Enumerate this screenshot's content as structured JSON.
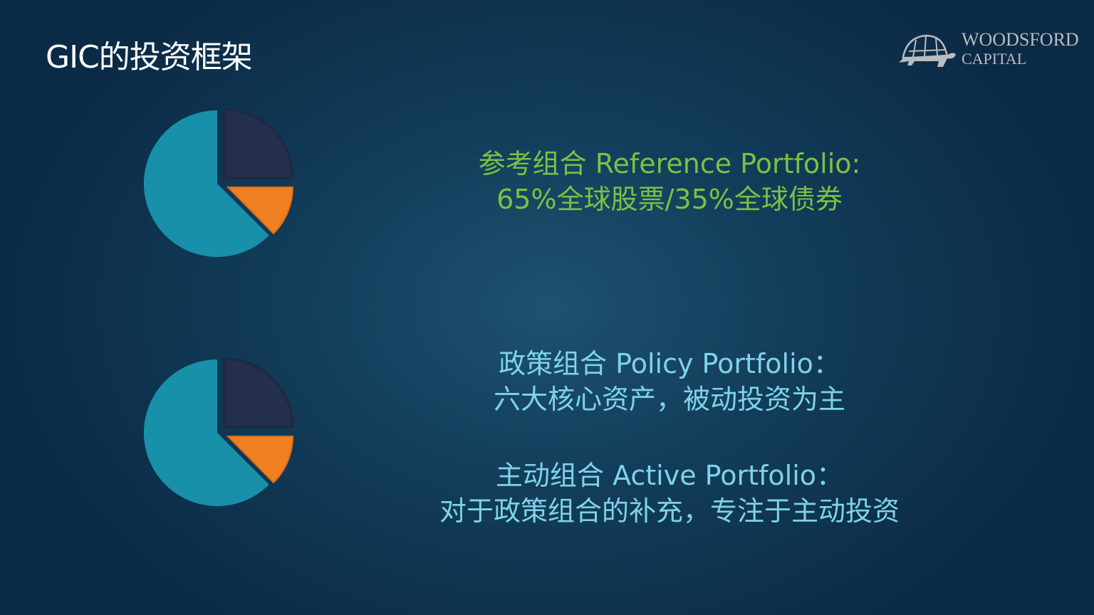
{
  "title": "GIC的投资框架",
  "logo": {
    "line1": "WOODSFORD",
    "line2": "CAPITAL"
  },
  "colors": {
    "pie_main": "#1890aa",
    "pie_dark": "#232f4c",
    "pie_orange": "#f07f22",
    "reference_text": "#7ac143",
    "policy_text": "#7fd3e6"
  },
  "reference": {
    "line1": "参考组合 Reference Portfolio:",
    "line2": "65%全球股票/35%全球债券"
  },
  "policy": {
    "line1": "政策组合 Policy Portfolio：",
    "line2": "六大核心资产，被动投资为主"
  },
  "active": {
    "line1": "主动组合 Active Portfolio：",
    "line2": "对于政策组合的补充，专注于主动投资"
  }
}
